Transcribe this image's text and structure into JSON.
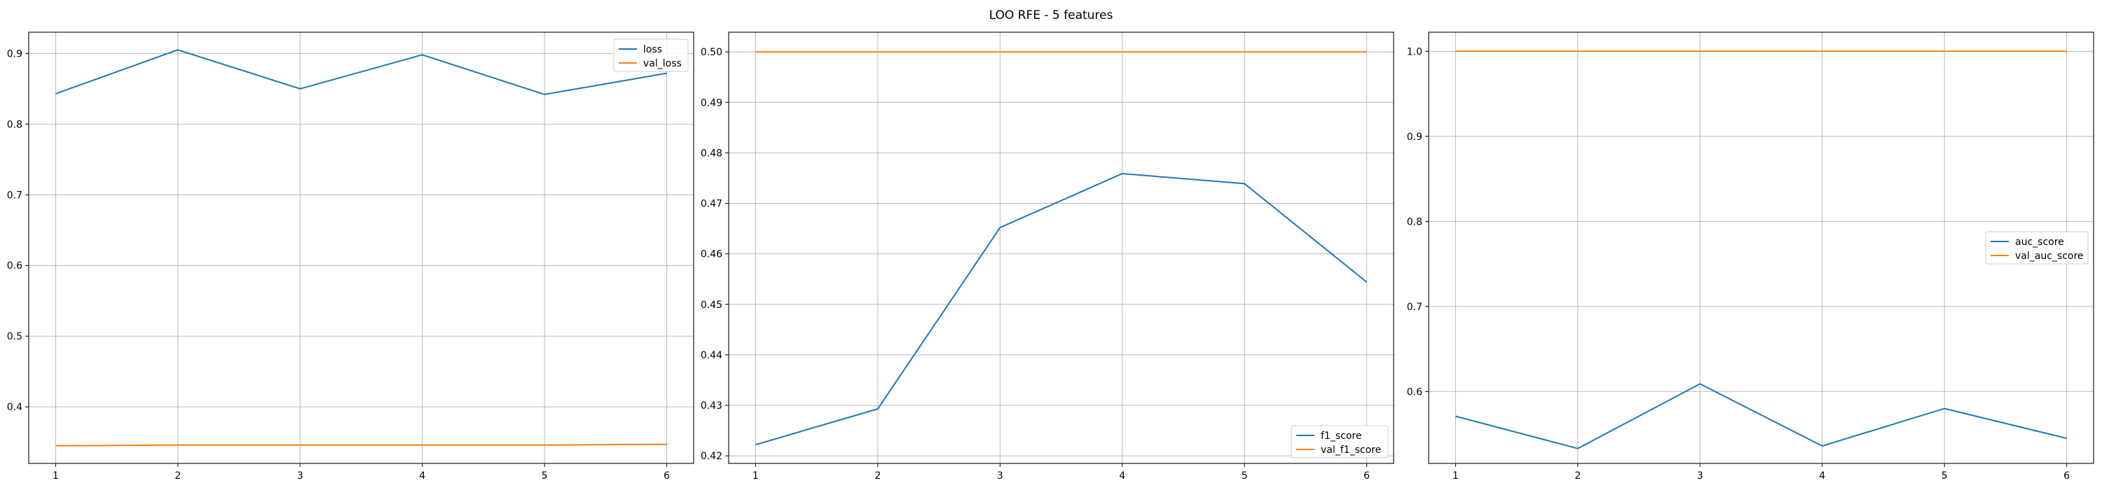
{
  "figure": {
    "title": "LOO RFE - 5 features"
  },
  "colors": {
    "series_1": "#1f77b4",
    "series_2": "#ff7f0e"
  },
  "chart_data": [
    {
      "type": "line",
      "x": [
        1,
        2,
        3,
        4,
        5,
        6
      ],
      "series": [
        {
          "name": "loss",
          "values": [
            0.843,
            0.905,
            0.85,
            0.898,
            0.842,
            0.872
          ]
        },
        {
          "name": "val_loss",
          "values": [
            0.345,
            0.346,
            0.346,
            0.346,
            0.346,
            0.347
          ]
        }
      ],
      "xlim": [
        0.78,
        6.22
      ],
      "ylim": [
        0.32,
        0.93
      ],
      "xticks": [
        1,
        2,
        3,
        4,
        5,
        6
      ],
      "yticks": [
        0.4,
        0.5,
        0.6,
        0.7,
        0.8,
        0.9
      ],
      "ytick_decimals": 1,
      "grid": true,
      "legend": "upper right"
    },
    {
      "type": "line",
      "x": [
        1,
        2,
        3,
        4,
        5,
        6
      ],
      "series": [
        {
          "name": "f1_score",
          "values": [
            0.4222,
            0.4293,
            0.4652,
            0.4759,
            0.4739,
            0.4544
          ]
        },
        {
          "name": "val_f1_score",
          "values": [
            0.5,
            0.5,
            0.5,
            0.5,
            0.5,
            0.5
          ]
        }
      ],
      "xlim": [
        0.78,
        6.22
      ],
      "ylim": [
        0.4185,
        0.5039
      ],
      "xticks": [
        1,
        2,
        3,
        4,
        5,
        6
      ],
      "yticks": [
        0.42,
        0.43,
        0.44,
        0.45,
        0.46,
        0.47,
        0.48,
        0.49,
        0.5
      ],
      "ytick_decimals": 2,
      "grid": true,
      "legend": "lower right"
    },
    {
      "type": "line",
      "x": [
        1,
        2,
        3,
        4,
        5,
        6
      ],
      "series": [
        {
          "name": "auc_score",
          "values": [
            0.571,
            0.533,
            0.609,
            0.536,
            0.58,
            0.545
          ]
        },
        {
          "name": "val_auc_score",
          "values": [
            1.0,
            1.0,
            1.0,
            1.0,
            1.0,
            1.0
          ]
        }
      ],
      "xlim": [
        0.78,
        6.22
      ],
      "ylim": [
        0.5155,
        1.0225
      ],
      "xticks": [
        1,
        2,
        3,
        4,
        5,
        6
      ],
      "yticks": [
        0.6,
        0.7,
        0.8,
        0.9,
        1.0
      ],
      "ytick_decimals": 1,
      "grid": true,
      "legend": "center right"
    }
  ]
}
